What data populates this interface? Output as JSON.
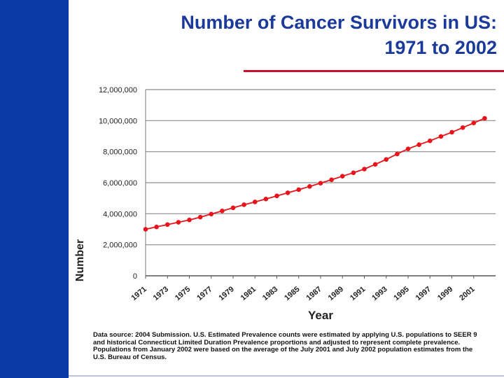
{
  "slide": {
    "title_line1": "Number of Cancer Survivors in US:",
    "title_line2": "1971 to 2002",
    "footnote": "Data source: 2004 Submission. U.S. Estimated Prevalence counts were estimated by applying U.S. populations to SEER 9 and historical Connecticut Limited Duration Prevalence proportions and adjusted to represent complete prevalence. Populations from January 2002 were based on the average of the July 2001 and July 2002 population estimates from the U.S. Bureau of Census.",
    "accent_color": "#c8102e",
    "sidebar_color": "#0a3aa6"
  },
  "chart_data": {
    "type": "line",
    "xlabel": "Year",
    "ylabel": "Number",
    "ylim": [
      0,
      12000000
    ],
    "grid": true,
    "marker_color": "#e8141b",
    "y_ticks": [
      0,
      2000000,
      4000000,
      6000000,
      8000000,
      10000000,
      12000000
    ],
    "y_tick_labels": [
      "0",
      "2,000,000",
      "4,000,000",
      "6,000,000",
      "8,000,000",
      "10,000,000",
      "12,000,000"
    ],
    "x_tick_labels": [
      "1971",
      "1973",
      "1975",
      "1977",
      "1979",
      "1981",
      "1983",
      "1985",
      "1987",
      "1989",
      "1991",
      "1993",
      "1995",
      "1997",
      "1999",
      "2001"
    ],
    "series": [
      {
        "name": "Cancer survivors",
        "x": [
          1971,
          1972,
          1973,
          1974,
          1975,
          1976,
          1977,
          1978,
          1979,
          1980,
          1981,
          1982,
          1983,
          1984,
          1985,
          1986,
          1987,
          1988,
          1989,
          1990,
          1991,
          1992,
          1993,
          1994,
          1995,
          1996,
          1997,
          1998,
          1999,
          2000,
          2001,
          2002
        ],
        "values": [
          3000000,
          3150000,
          3300000,
          3450000,
          3600000,
          3780000,
          3980000,
          4180000,
          4380000,
          4580000,
          4760000,
          4950000,
          5150000,
          5350000,
          5550000,
          5760000,
          5970000,
          6190000,
          6420000,
          6640000,
          6880000,
          7180000,
          7500000,
          7850000,
          8180000,
          8450000,
          8700000,
          8980000,
          9250000,
          9550000,
          9850000,
          10150000
        ]
      }
    ]
  }
}
